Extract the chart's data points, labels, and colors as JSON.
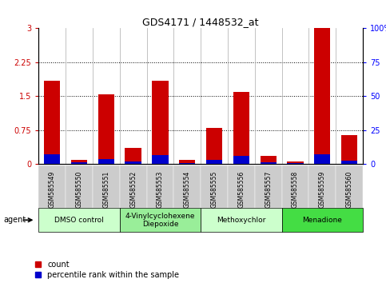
{
  "title": "GDS4171 / 1448532_at",
  "samples": [
    "GSM585549",
    "GSM585550",
    "GSM585551",
    "GSM585552",
    "GSM585553",
    "GSM585554",
    "GSM585555",
    "GSM585556",
    "GSM585557",
    "GSM585558",
    "GSM585559",
    "GSM585560"
  ],
  "red_values": [
    1.85,
    0.1,
    1.55,
    0.35,
    1.85,
    0.1,
    0.8,
    1.6,
    0.18,
    0.05,
    3.0,
    0.65
  ],
  "blue_values": [
    0.22,
    0.04,
    0.12,
    0.06,
    0.2,
    0.03,
    0.1,
    0.18,
    0.04,
    0.03,
    0.22,
    0.08
  ],
  "ylim_left": [
    0,
    3
  ],
  "ylim_right": [
    0,
    100
  ],
  "yticks_left": [
    0,
    0.75,
    1.5,
    2.25,
    3
  ],
  "ytick_labels_left": [
    "0",
    "0.75",
    "1.5",
    "2.25",
    "3"
  ],
  "yticks_right": [
    0,
    25,
    50,
    75,
    100
  ],
  "ytick_labels_right": [
    "0",
    "25",
    "50",
    "75",
    "100%"
  ],
  "red_color": "#cc0000",
  "blue_color": "#0000cc",
  "bar_width": 0.6,
  "groups": [
    {
      "label": "DMSO control",
      "start": 0,
      "end": 3,
      "color": "#ccffcc"
    },
    {
      "label": "4-Vinylcyclohexene\nDiepoxide",
      "start": 3,
      "end": 6,
      "color": "#99ee99"
    },
    {
      "label": "Methoxychlor",
      "start": 6,
      "end": 9,
      "color": "#ccffcc"
    },
    {
      "label": "Menadione",
      "start": 9,
      "end": 12,
      "color": "#44dd44"
    }
  ],
  "legend_count_label": "count",
  "legend_pct_label": "percentile rank within the sample",
  "agent_label": "agent",
  "tick_bg_color": "#cccccc",
  "dotted_yticks": [
    0.75,
    1.5,
    2.25
  ]
}
